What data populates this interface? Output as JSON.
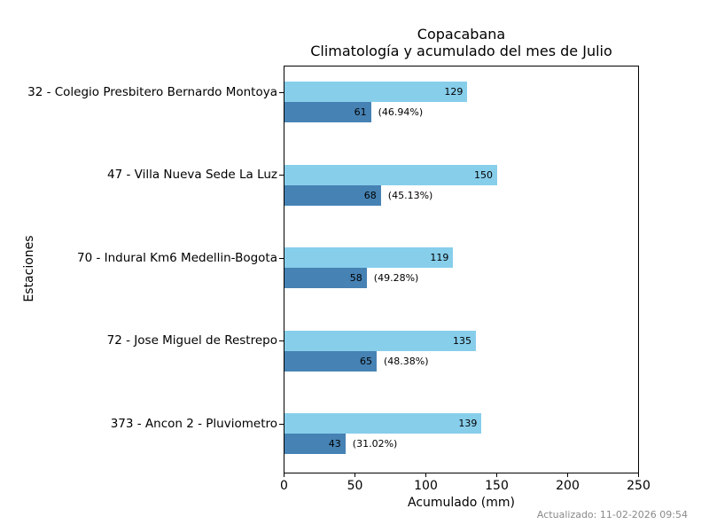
{
  "title": {
    "line1": "Copacabana",
    "line2": "Climatología y acumulado del mes de Julio"
  },
  "chart_data": {
    "type": "bar",
    "orientation": "horizontal",
    "title": "Copacabana — Climatología y acumulado del mes de Julio",
    "xlabel": "Acumulado (mm)",
    "ylabel": "Estaciones",
    "xlim": [
      0,
      250
    ],
    "xticks": [
      0,
      50,
      100,
      150,
      200,
      250
    ],
    "grid": false,
    "legend": "none",
    "categories": [
      "32 - Colegio Presbitero Bernardo Montoya",
      "47 - Villa Nueva Sede La Luz",
      "70 - Indural Km6 Medellin-Bogota",
      "72 - Jose Miguel de Restrepo",
      "373 - Ancon 2 - Pluviometro"
    ],
    "series": [
      {
        "name": "climatologia",
        "color": "#87CEEB",
        "values": [
          129,
          150,
          119,
          135,
          139
        ]
      },
      {
        "name": "acumulado",
        "color": "#4682B4",
        "values": [
          61,
          68,
          58,
          65,
          43
        ]
      }
    ],
    "pct_labels": [
      "(46.94%)",
      "(45.13%)",
      "(49.28%)",
      "(48.38%)",
      "(31.02%)"
    ]
  },
  "footer": {
    "updated": "Actualizado: 11-02-2026 09:54"
  }
}
